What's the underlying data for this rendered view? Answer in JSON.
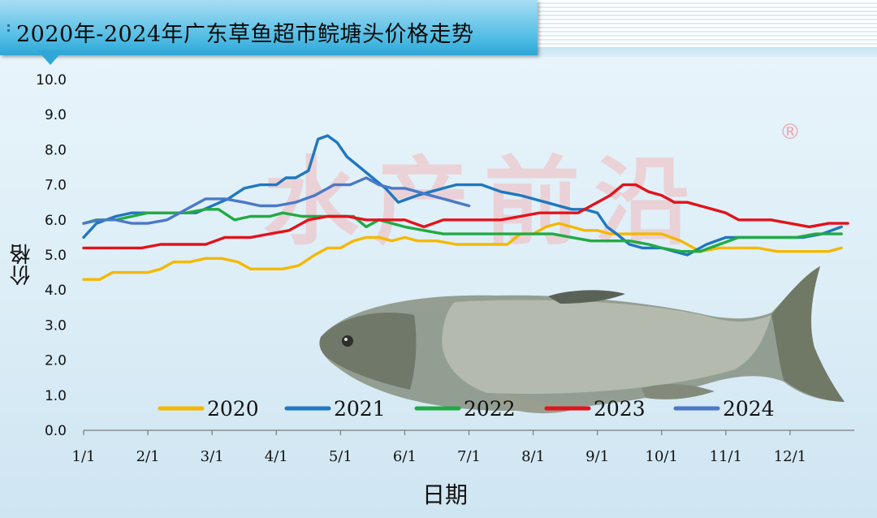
{
  "title": "2020年-2024年广东草鱼超市鲩塘头价格走势",
  "watermark_mark": "®",
  "watermark_text": "水产前沿",
  "chart_data": {
    "type": "line",
    "title": "2020年-2024年广东草鱼超市鲩塘头价格走势",
    "xlabel": "日期",
    "ylabel": "价格",
    "x_ticks": [
      "1/1",
      "2/1",
      "3/1",
      "4/1",
      "5/1",
      "6/1",
      "7/1",
      "8/1",
      "9/1",
      "10/1",
      "11/1",
      "12/1"
    ],
    "ylim": [
      0,
      10
    ],
    "y_ticks": [
      "0.0",
      "1.0",
      "2.0",
      "3.0",
      "4.0",
      "5.0",
      "6.0",
      "7.0",
      "8.0",
      "9.0",
      "10.0"
    ],
    "x_unit": "month (1 = Jan 1)",
    "legend_position": "bottom",
    "grid": false,
    "series": [
      {
        "name": "2020",
        "color": "#f5b800",
        "x": [
          1.0,
          1.25,
          1.45,
          1.7,
          2.0,
          2.2,
          2.4,
          2.65,
          2.9,
          3.15,
          3.4,
          3.6,
          3.9,
          4.1,
          4.35,
          4.6,
          4.8,
          5.0,
          5.2,
          5.4,
          5.6,
          5.8,
          6.0,
          6.2,
          6.5,
          6.8,
          7.0,
          7.3,
          7.6,
          7.8,
          8.0,
          8.2,
          8.4,
          8.6,
          8.8,
          9.0,
          9.2,
          9.5,
          9.8,
          10.0,
          10.3,
          10.6,
          10.9,
          11.2,
          11.5,
          11.8,
          12.0,
          12.3,
          12.6,
          12.8
        ],
        "y": [
          4.3,
          4.3,
          4.5,
          4.5,
          4.5,
          4.6,
          4.8,
          4.8,
          4.9,
          4.9,
          4.8,
          4.6,
          4.6,
          4.6,
          4.7,
          5.0,
          5.2,
          5.2,
          5.4,
          5.5,
          5.5,
          5.4,
          5.5,
          5.4,
          5.4,
          5.3,
          5.3,
          5.3,
          5.3,
          5.6,
          5.6,
          5.8,
          5.9,
          5.8,
          5.7,
          5.7,
          5.6,
          5.6,
          5.6,
          5.6,
          5.4,
          5.1,
          5.2,
          5.2,
          5.2,
          5.1,
          5.1,
          5.1,
          5.1,
          5.2
        ]
      },
      {
        "name": "2021",
        "color": "#1f77c0",
        "x": [
          1.0,
          1.2,
          1.5,
          1.75,
          2.0,
          2.25,
          2.5,
          2.75,
          3.0,
          3.25,
          3.5,
          3.75,
          4.0,
          4.15,
          4.3,
          4.5,
          4.65,
          4.8,
          4.95,
          5.1,
          5.3,
          5.5,
          5.7,
          5.9,
          6.05,
          6.2,
          6.4,
          6.6,
          6.8,
          7.0,
          7.2,
          7.5,
          7.8,
          8.0,
          8.2,
          8.4,
          8.6,
          8.8,
          9.0,
          9.15,
          9.3,
          9.5,
          9.7,
          10.0,
          10.2,
          10.4,
          10.7,
          11.0,
          11.3,
          11.6,
          11.9,
          12.2,
          12.5,
          12.8
        ],
        "y": [
          5.5,
          5.9,
          6.1,
          6.2,
          6.2,
          6.2,
          6.2,
          6.2,
          6.4,
          6.6,
          6.9,
          7.0,
          7.0,
          7.2,
          7.2,
          7.4,
          8.3,
          8.4,
          8.2,
          7.8,
          7.5,
          7.2,
          6.9,
          6.5,
          6.6,
          6.7,
          6.8,
          6.9,
          7.0,
          7.0,
          7.0,
          6.8,
          6.7,
          6.6,
          6.5,
          6.4,
          6.3,
          6.3,
          6.2,
          5.8,
          5.6,
          5.3,
          5.2,
          5.2,
          5.1,
          5.0,
          5.3,
          5.5,
          5.5,
          5.5,
          5.5,
          5.5,
          5.6,
          5.8
        ]
      },
      {
        "name": "2022",
        "color": "#22aa44",
        "x": [
          1.0,
          1.2,
          1.5,
          1.75,
          2.0,
          2.3,
          2.6,
          2.9,
          3.1,
          3.35,
          3.6,
          3.9,
          4.1,
          4.4,
          4.7,
          5.0,
          5.2,
          5.4,
          5.6,
          5.8,
          6.0,
          6.3,
          6.6,
          6.8,
          7.1,
          7.4,
          7.8,
          8.0,
          8.3,
          8.6,
          8.9,
          9.2,
          9.5,
          9.8,
          10.0,
          10.3,
          10.6,
          10.9,
          11.2,
          11.5,
          11.8,
          12.1,
          12.4,
          12.8
        ],
        "y": [
          5.9,
          6.0,
          6.0,
          6.1,
          6.2,
          6.2,
          6.2,
          6.3,
          6.3,
          6.0,
          6.1,
          6.1,
          6.2,
          6.1,
          6.1,
          6.1,
          6.1,
          5.8,
          6.0,
          5.9,
          5.8,
          5.7,
          5.6,
          5.6,
          5.6,
          5.6,
          5.6,
          5.6,
          5.6,
          5.5,
          5.4,
          5.4,
          5.4,
          5.3,
          5.2,
          5.1,
          5.1,
          5.3,
          5.5,
          5.5,
          5.5,
          5.5,
          5.6,
          5.6
        ]
      },
      {
        "name": "2023",
        "color": "#e3121b",
        "x": [
          1.0,
          1.4,
          1.9,
          2.2,
          2.6,
          2.9,
          3.2,
          3.6,
          3.9,
          4.2,
          4.5,
          4.8,
          5.1,
          5.4,
          5.7,
          6.0,
          6.3,
          6.6,
          6.9,
          7.2,
          7.5,
          7.8,
          8.1,
          8.4,
          8.7,
          9.0,
          9.2,
          9.4,
          9.6,
          9.8,
          10.0,
          10.2,
          10.4,
          10.6,
          10.8,
          11.0,
          11.2,
          11.4,
          11.7,
          12.0,
          12.3,
          12.6,
          12.9
        ],
        "y": [
          5.2,
          5.2,
          5.2,
          5.3,
          5.3,
          5.3,
          5.5,
          5.5,
          5.6,
          5.7,
          6.0,
          6.1,
          6.1,
          6.0,
          6.0,
          6.0,
          5.8,
          6.0,
          6.0,
          6.0,
          6.0,
          6.1,
          6.2,
          6.2,
          6.2,
          6.5,
          6.7,
          7.0,
          7.0,
          6.8,
          6.7,
          6.5,
          6.5,
          6.4,
          6.3,
          6.2,
          6.0,
          6.0,
          6.0,
          5.9,
          5.8,
          5.9,
          5.9
        ]
      },
      {
        "name": "2024",
        "color": "#4b78c8",
        "x": [
          1.0,
          1.25,
          1.5,
          1.75,
          2.0,
          2.3,
          2.6,
          2.9,
          3.2,
          3.5,
          3.75,
          4.0,
          4.3,
          4.6,
          4.9,
          5.15,
          5.4,
          5.6,
          5.8,
          6.0,
          6.2,
          6.4,
          6.6,
          6.8,
          7.0
        ],
        "y": [
          5.9,
          6.0,
          6.0,
          5.9,
          5.9,
          6.0,
          6.3,
          6.6,
          6.6,
          6.5,
          6.4,
          6.4,
          6.5,
          6.7,
          7.0,
          7.0,
          7.2,
          7.0,
          6.9,
          6.9,
          6.8,
          6.7,
          6.6,
          6.5,
          6.4
        ]
      }
    ]
  }
}
